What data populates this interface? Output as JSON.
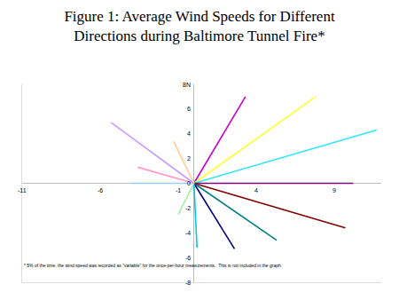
{
  "chart_data": {
    "type": "line",
    "title": "Figure 1: Average Wind Speeds for Different Directions during Baltimore Tunnel Fire*",
    "annotations": [
      "* 5% of the time, the wind speed was recorded as \"variable\" for the once-per-hour measurements.  This is not included in the graph"
    ],
    "xlim": [
      -11,
      12
    ],
    "ylim": [
      -8,
      8
    ],
    "xticks": [
      -11,
      -6,
      -1,
      4,
      9
    ],
    "yticks": [
      {
        "value": 8,
        "label": "8N"
      },
      6,
      4,
      2,
      0,
      -2,
      -4,
      -6,
      -8
    ],
    "grid": false,
    "series": [
      {
        "color": "#cc00cc",
        "x": [
          0,
          3.3
        ],
        "values": [
          0,
          7.0
        ]
      },
      {
        "color": "#ffff33",
        "x": [
          0,
          7.8
        ],
        "values": [
          0,
          7.0
        ]
      },
      {
        "color": "#33e6ff",
        "x": [
          0,
          11.7
        ],
        "values": [
          0,
          4.3
        ]
      },
      {
        "color": "#800080",
        "x": [
          0,
          10.2
        ],
        "values": [
          0,
          0
        ]
      },
      {
        "color": "#800000",
        "x": [
          0,
          9.7
        ],
        "values": [
          0,
          -3.6
        ]
      },
      {
        "color": "#008080",
        "x": [
          0,
          5.3
        ],
        "values": [
          0,
          -4.6
        ]
      },
      {
        "color": "#000080",
        "x": [
          0,
          2.6
        ],
        "values": [
          0,
          -5.3
        ]
      },
      {
        "color": "#00c8e6",
        "x": [
          0,
          0.2
        ],
        "values": [
          0,
          -5.2
        ]
      },
      {
        "color": "#a0f0a0",
        "x": [
          0,
          -1.0
        ],
        "values": [
          0,
          -2.5
        ]
      },
      {
        "color": "#99ccff",
        "x": [
          0,
          -4.1
        ],
        "values": [
          0,
          0
        ]
      },
      {
        "color": "#ff99cc",
        "x": [
          0,
          -3.6
        ],
        "values": [
          0,
          1.3
        ]
      },
      {
        "color": "#cc99ff",
        "x": [
          0,
          -5.3
        ],
        "values": [
          0,
          4.9
        ]
      },
      {
        "color": "#ffcc99",
        "x": [
          0,
          -1.3
        ],
        "values": [
          0,
          3.4
        ]
      }
    ]
  }
}
